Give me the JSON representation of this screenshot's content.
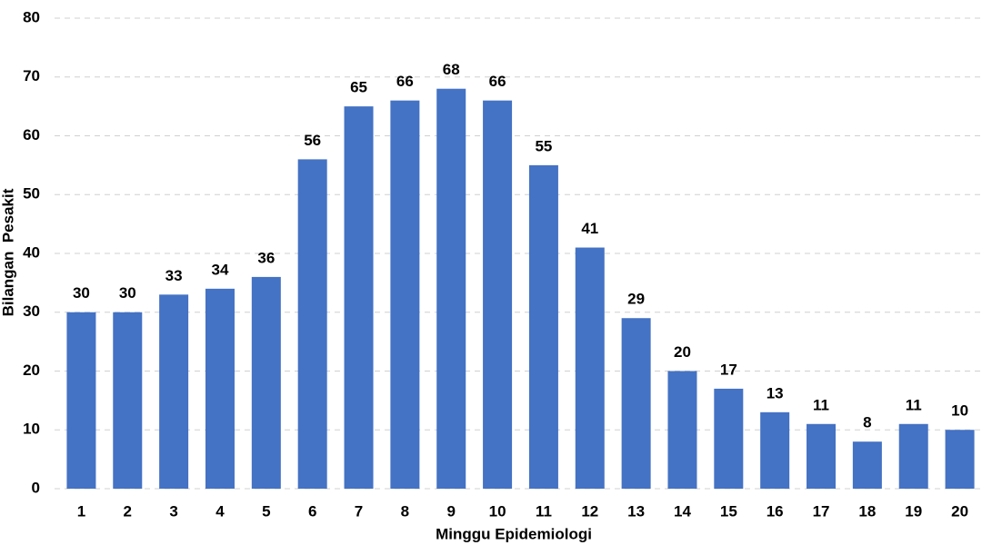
{
  "chart_data": {
    "type": "bar",
    "y_label": "Bilangan  Pesakit",
    "x_label": "Minggu Epidemiologi",
    "categories": [
      "1",
      "2",
      "3",
      "4",
      "5",
      "6",
      "7",
      "8",
      "9",
      "10",
      "11",
      "12",
      "13",
      "14",
      "15",
      "16",
      "17",
      "18",
      "19",
      "20"
    ],
    "values": [
      30,
      30,
      33,
      34,
      36,
      56,
      65,
      66,
      68,
      66,
      55,
      41,
      29,
      20,
      17,
      13,
      11,
      8,
      11,
      10
    ],
    "color": "#4472c4",
    "ylim": [
      0,
      80
    ],
    "yticks": [
      0,
      10,
      20,
      30,
      40,
      50,
      60,
      70,
      80
    ],
    "grid": true
  }
}
